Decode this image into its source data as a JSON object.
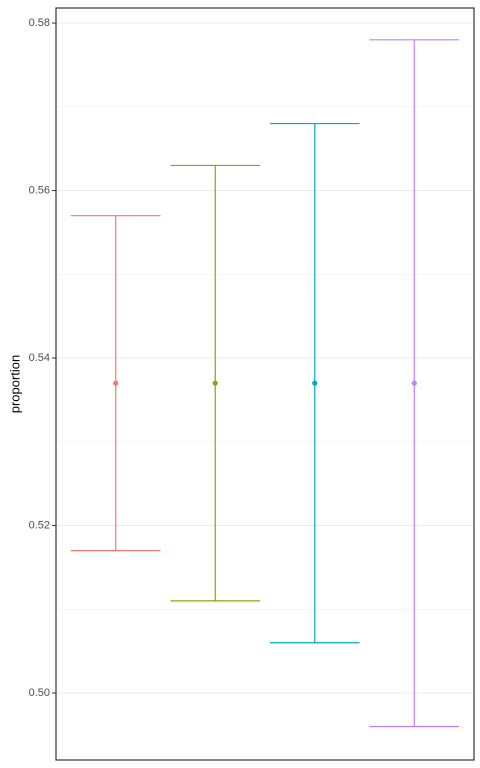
{
  "chart_data": {
    "type": "errorbar",
    "y_label": "proportion",
    "categories": [
      null,
      null,
      null,
      null
    ],
    "values": [
      0.537,
      0.537,
      0.537,
      0.537
    ],
    "lower": [
      0.517,
      0.511,
      0.506,
      0.496
    ],
    "upper": [
      0.557,
      0.563,
      0.568,
      0.578
    ],
    "colors": [
      "#f8766d",
      "#7cae00",
      "#00a9c5",
      "#c77cff"
    ],
    "ylim": [
      0.492,
      0.5818
    ],
    "yticks": [
      {
        "value": 0.5,
        "label": "0.50"
      },
      0.52,
      0.54,
      0.56,
      0.58
    ],
    "yminor": [
      0.51,
      0.53,
      0.55,
      0.57
    ],
    "grid": true
  }
}
